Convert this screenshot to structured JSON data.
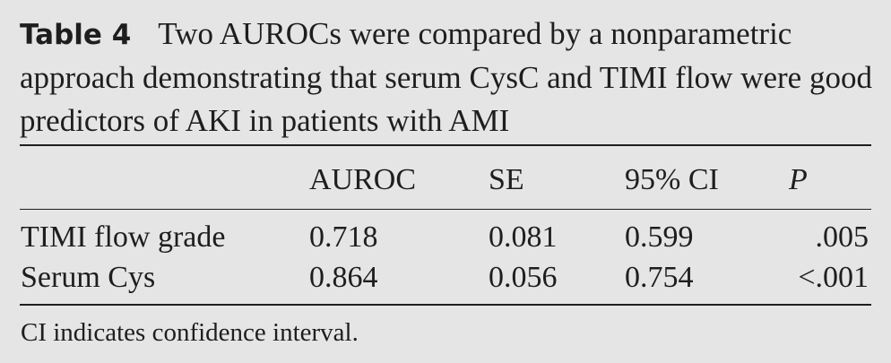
{
  "caption": {
    "label": "Table 4",
    "text": "Two AUROCs were compared by a nonparametric approach demonstrating that serum CysC and TIMI flow were good predictors of AKI in patients with AMI"
  },
  "table": {
    "headers": [
      "",
      "AUROC",
      "SE",
      "95% CI",
      "P"
    ],
    "rows": [
      [
        "TIMI flow grade",
        "0.718",
        "0.081",
        "0.599",
        ".005"
      ],
      [
        "Serum Cys",
        "0.864",
        "0.056",
        "0.754",
        "<.001"
      ]
    ]
  },
  "footnote": "CI indicates confidence interval."
}
